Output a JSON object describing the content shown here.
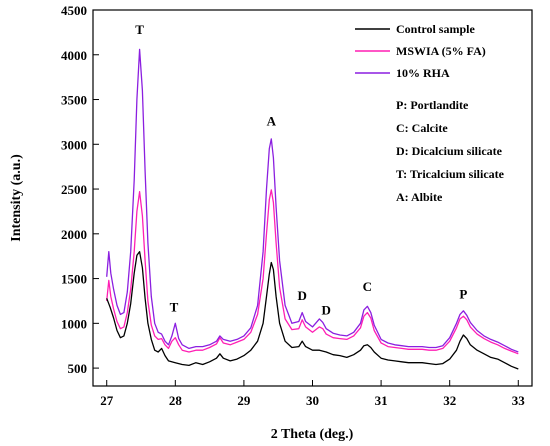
{
  "chart_data": {
    "type": "line",
    "xlabel": "2 Theta (deg.)",
    "ylabel": "Intensity (a.u.)",
    "xlim": [
      26.8,
      33.2
    ],
    "ylim": [
      300,
      4500
    ],
    "x_ticks": [
      27,
      28,
      29,
      30,
      31,
      32,
      33
    ],
    "y_ticks": [
      500,
      1000,
      1500,
      2000,
      2500,
      3000,
      3500,
      4000,
      4500
    ],
    "legend_position": "top-right",
    "series": [
      {
        "name": "Control sample",
        "color": "#000000",
        "points": [
          [
            27.0,
            1280
          ],
          [
            27.05,
            1180
          ],
          [
            27.1,
            1060
          ],
          [
            27.15,
            920
          ],
          [
            27.2,
            840
          ],
          [
            27.25,
            860
          ],
          [
            27.3,
            1000
          ],
          [
            27.35,
            1220
          ],
          [
            27.4,
            1560
          ],
          [
            27.44,
            1760
          ],
          [
            27.48,
            1800
          ],
          [
            27.52,
            1620
          ],
          [
            27.56,
            1280
          ],
          [
            27.6,
            1000
          ],
          [
            27.65,
            820
          ],
          [
            27.7,
            700
          ],
          [
            27.75,
            680
          ],
          [
            27.8,
            720
          ],
          [
            27.85,
            640
          ],
          [
            27.9,
            580
          ],
          [
            28.0,
            560
          ],
          [
            28.1,
            540
          ],
          [
            28.2,
            530
          ],
          [
            28.3,
            560
          ],
          [
            28.4,
            540
          ],
          [
            28.5,
            570
          ],
          [
            28.6,
            610
          ],
          [
            28.65,
            660
          ],
          [
            28.7,
            610
          ],
          [
            28.8,
            580
          ],
          [
            28.9,
            600
          ],
          [
            29.0,
            640
          ],
          [
            29.1,
            700
          ],
          [
            29.2,
            800
          ],
          [
            29.28,
            1000
          ],
          [
            29.33,
            1300
          ],
          [
            29.37,
            1550
          ],
          [
            29.4,
            1680
          ],
          [
            29.43,
            1600
          ],
          [
            29.47,
            1300
          ],
          [
            29.52,
            1000
          ],
          [
            29.6,
            800
          ],
          [
            29.7,
            730
          ],
          [
            29.8,
            740
          ],
          [
            29.85,
            800
          ],
          [
            29.9,
            740
          ],
          [
            30.0,
            700
          ],
          [
            30.1,
            700
          ],
          [
            30.2,
            680
          ],
          [
            30.3,
            650
          ],
          [
            30.4,
            640
          ],
          [
            30.5,
            620
          ],
          [
            30.6,
            650
          ],
          [
            30.7,
            700
          ],
          [
            30.75,
            750
          ],
          [
            30.8,
            760
          ],
          [
            30.85,
            730
          ],
          [
            30.9,
            680
          ],
          [
            31.0,
            610
          ],
          [
            31.1,
            590
          ],
          [
            31.2,
            580
          ],
          [
            31.3,
            570
          ],
          [
            31.4,
            560
          ],
          [
            31.5,
            560
          ],
          [
            31.6,
            560
          ],
          [
            31.7,
            550
          ],
          [
            31.8,
            540
          ],
          [
            31.9,
            550
          ],
          [
            32.0,
            600
          ],
          [
            32.1,
            700
          ],
          [
            32.15,
            800
          ],
          [
            32.2,
            870
          ],
          [
            32.25,
            830
          ],
          [
            32.3,
            760
          ],
          [
            32.4,
            700
          ],
          [
            32.5,
            660
          ],
          [
            32.6,
            620
          ],
          [
            32.7,
            600
          ],
          [
            32.8,
            560
          ],
          [
            32.9,
            520
          ],
          [
            33.0,
            490
          ]
        ]
      },
      {
        "name": "MSWIA (5% FA)",
        "color": "#ff1fb4",
        "points": [
          [
            27.0,
            1250
          ],
          [
            27.03,
            1480
          ],
          [
            27.06,
            1300
          ],
          [
            27.1,
            1160
          ],
          [
            27.15,
            1020
          ],
          [
            27.2,
            940
          ],
          [
            27.25,
            960
          ],
          [
            27.3,
            1120
          ],
          [
            27.35,
            1380
          ],
          [
            27.4,
            1800
          ],
          [
            27.44,
            2250
          ],
          [
            27.48,
            2470
          ],
          [
            27.52,
            2200
          ],
          [
            27.56,
            1700
          ],
          [
            27.6,
            1250
          ],
          [
            27.65,
            980
          ],
          [
            27.7,
            860
          ],
          [
            27.75,
            820
          ],
          [
            27.8,
            830
          ],
          [
            27.85,
            760
          ],
          [
            27.9,
            720
          ],
          [
            27.95,
            800
          ],
          [
            28.0,
            840
          ],
          [
            28.05,
            760
          ],
          [
            28.1,
            700
          ],
          [
            28.2,
            680
          ],
          [
            28.3,
            700
          ],
          [
            28.4,
            700
          ],
          [
            28.5,
            730
          ],
          [
            28.6,
            770
          ],
          [
            28.65,
            840
          ],
          [
            28.7,
            780
          ],
          [
            28.8,
            760
          ],
          [
            28.9,
            790
          ],
          [
            29.0,
            820
          ],
          [
            29.1,
            900
          ],
          [
            29.2,
            1100
          ],
          [
            29.28,
            1500
          ],
          [
            29.33,
            2000
          ],
          [
            29.37,
            2380
          ],
          [
            29.4,
            2490
          ],
          [
            29.43,
            2350
          ],
          [
            29.47,
            1900
          ],
          [
            29.52,
            1400
          ],
          [
            29.6,
            1050
          ],
          [
            29.7,
            930
          ],
          [
            29.8,
            940
          ],
          [
            29.85,
            1040
          ],
          [
            29.9,
            960
          ],
          [
            30.0,
            900
          ],
          [
            30.1,
            960
          ],
          [
            30.15,
            940
          ],
          [
            30.2,
            880
          ],
          [
            30.3,
            840
          ],
          [
            30.4,
            830
          ],
          [
            30.5,
            820
          ],
          [
            30.6,
            860
          ],
          [
            30.7,
            950
          ],
          [
            30.75,
            1080
          ],
          [
            30.8,
            1120
          ],
          [
            30.85,
            1060
          ],
          [
            30.9,
            920
          ],
          [
            31.0,
            780
          ],
          [
            31.1,
            740
          ],
          [
            31.2,
            730
          ],
          [
            31.3,
            720
          ],
          [
            31.4,
            710
          ],
          [
            31.5,
            710
          ],
          [
            31.6,
            710
          ],
          [
            31.7,
            700
          ],
          [
            31.8,
            700
          ],
          [
            31.9,
            720
          ],
          [
            32.0,
            800
          ],
          [
            32.1,
            950
          ],
          [
            32.15,
            1050
          ],
          [
            32.2,
            1080
          ],
          [
            32.25,
            1040
          ],
          [
            32.3,
            960
          ],
          [
            32.4,
            880
          ],
          [
            32.5,
            830
          ],
          [
            32.6,
            790
          ],
          [
            32.7,
            760
          ],
          [
            32.8,
            720
          ],
          [
            32.9,
            690
          ],
          [
            33.0,
            660
          ]
        ]
      },
      {
        "name": "10% RHA",
        "color": "#8b1fe0",
        "points": [
          [
            27.0,
            1520
          ],
          [
            27.03,
            1800
          ],
          [
            27.06,
            1560
          ],
          [
            27.1,
            1380
          ],
          [
            27.15,
            1200
          ],
          [
            27.2,
            1100
          ],
          [
            27.25,
            1120
          ],
          [
            27.3,
            1350
          ],
          [
            27.35,
            1800
          ],
          [
            27.4,
            2600
          ],
          [
            27.44,
            3500
          ],
          [
            27.48,
            4060
          ],
          [
            27.52,
            3600
          ],
          [
            27.56,
            2700
          ],
          [
            27.6,
            1900
          ],
          [
            27.65,
            1300
          ],
          [
            27.7,
            1000
          ],
          [
            27.75,
            900
          ],
          [
            27.8,
            880
          ],
          [
            27.85,
            800
          ],
          [
            27.9,
            760
          ],
          [
            27.95,
            860
          ],
          [
            28.0,
            1000
          ],
          [
            28.05,
            830
          ],
          [
            28.1,
            760
          ],
          [
            28.2,
            720
          ],
          [
            28.3,
            740
          ],
          [
            28.4,
            740
          ],
          [
            28.5,
            760
          ],
          [
            28.6,
            800
          ],
          [
            28.65,
            860
          ],
          [
            28.7,
            820
          ],
          [
            28.8,
            800
          ],
          [
            28.9,
            820
          ],
          [
            29.0,
            860
          ],
          [
            29.1,
            950
          ],
          [
            29.2,
            1200
          ],
          [
            29.28,
            1800
          ],
          [
            29.33,
            2500
          ],
          [
            29.37,
            2950
          ],
          [
            29.4,
            3060
          ],
          [
            29.43,
            2850
          ],
          [
            29.47,
            2300
          ],
          [
            29.52,
            1700
          ],
          [
            29.6,
            1200
          ],
          [
            29.7,
            1000
          ],
          [
            29.8,
            1020
          ],
          [
            29.85,
            1120
          ],
          [
            29.9,
            1020
          ],
          [
            30.0,
            960
          ],
          [
            30.1,
            1050
          ],
          [
            30.15,
            1010
          ],
          [
            30.2,
            940
          ],
          [
            30.3,
            890
          ],
          [
            30.4,
            870
          ],
          [
            30.5,
            860
          ],
          [
            30.6,
            900
          ],
          [
            30.7,
            1000
          ],
          [
            30.75,
            1150
          ],
          [
            30.8,
            1190
          ],
          [
            30.85,
            1120
          ],
          [
            30.9,
            980
          ],
          [
            31.0,
            820
          ],
          [
            31.1,
            780
          ],
          [
            31.2,
            760
          ],
          [
            31.3,
            750
          ],
          [
            31.4,
            740
          ],
          [
            31.5,
            740
          ],
          [
            31.6,
            740
          ],
          [
            31.7,
            730
          ],
          [
            31.8,
            730
          ],
          [
            31.9,
            750
          ],
          [
            32.0,
            840
          ],
          [
            32.1,
            1000
          ],
          [
            32.15,
            1100
          ],
          [
            32.2,
            1140
          ],
          [
            32.25,
            1090
          ],
          [
            32.3,
            1010
          ],
          [
            32.4,
            920
          ],
          [
            32.5,
            860
          ],
          [
            32.6,
            820
          ],
          [
            32.7,
            790
          ],
          [
            32.8,
            750
          ],
          [
            32.9,
            710
          ],
          [
            33.0,
            680
          ]
        ]
      }
    ],
    "peak_annotations": [
      {
        "label": "T",
        "x": 27.48,
        "y": 4230
      },
      {
        "label": "T",
        "x": 27.98,
        "y": 1130
      },
      {
        "label": "A",
        "x": 29.4,
        "y": 3210
      },
      {
        "label": "D",
        "x": 29.85,
        "y": 1260
      },
      {
        "label": "D",
        "x": 30.2,
        "y": 1100
      },
      {
        "label": "C",
        "x": 30.8,
        "y": 1360
      },
      {
        "label": "P",
        "x": 32.2,
        "y": 1280
      }
    ],
    "key_notes": [
      "P: Portlandite",
      "C: Calcite",
      "D: Dicalcium silicate",
      "T: Tricalcium silicate",
      "A: Albite"
    ]
  }
}
